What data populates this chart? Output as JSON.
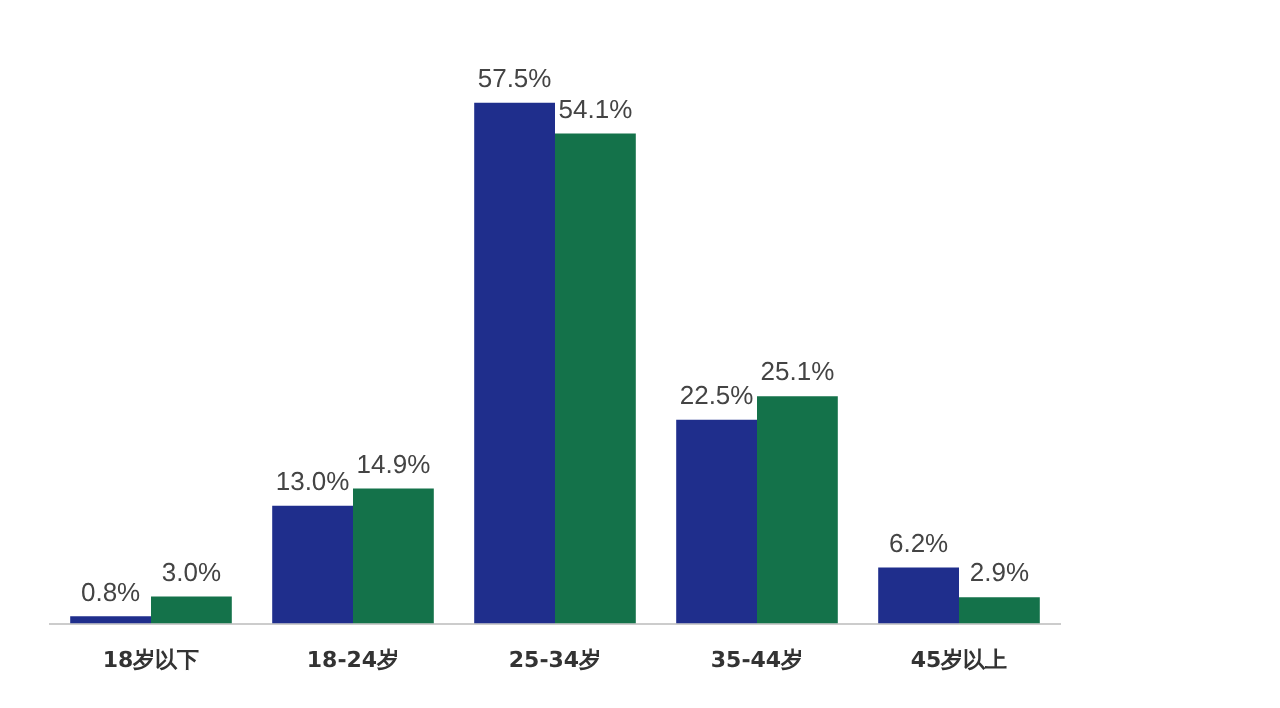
{
  "chart_data": {
    "type": "bar",
    "categories": [
      "18岁以下",
      "18-24岁",
      "25-34岁",
      "35-44岁",
      "45岁以上"
    ],
    "series": [
      {
        "color": "#1f2e8c",
        "values": [
          0.8,
          13.0,
          57.5,
          22.5,
          6.2
        ],
        "value_labels": [
          "0.8%",
          "13.0%",
          "57.5%",
          "22.5%",
          "6.2%"
        ]
      },
      {
        "color": "#14724a",
        "values": [
          3.0,
          14.9,
          54.1,
          25.1,
          2.9
        ],
        "value_labels": [
          "3.0%",
          "14.9%",
          "54.1%",
          "25.1%",
          "2.9%"
        ]
      }
    ],
    "grid": false,
    "legend": false
  }
}
